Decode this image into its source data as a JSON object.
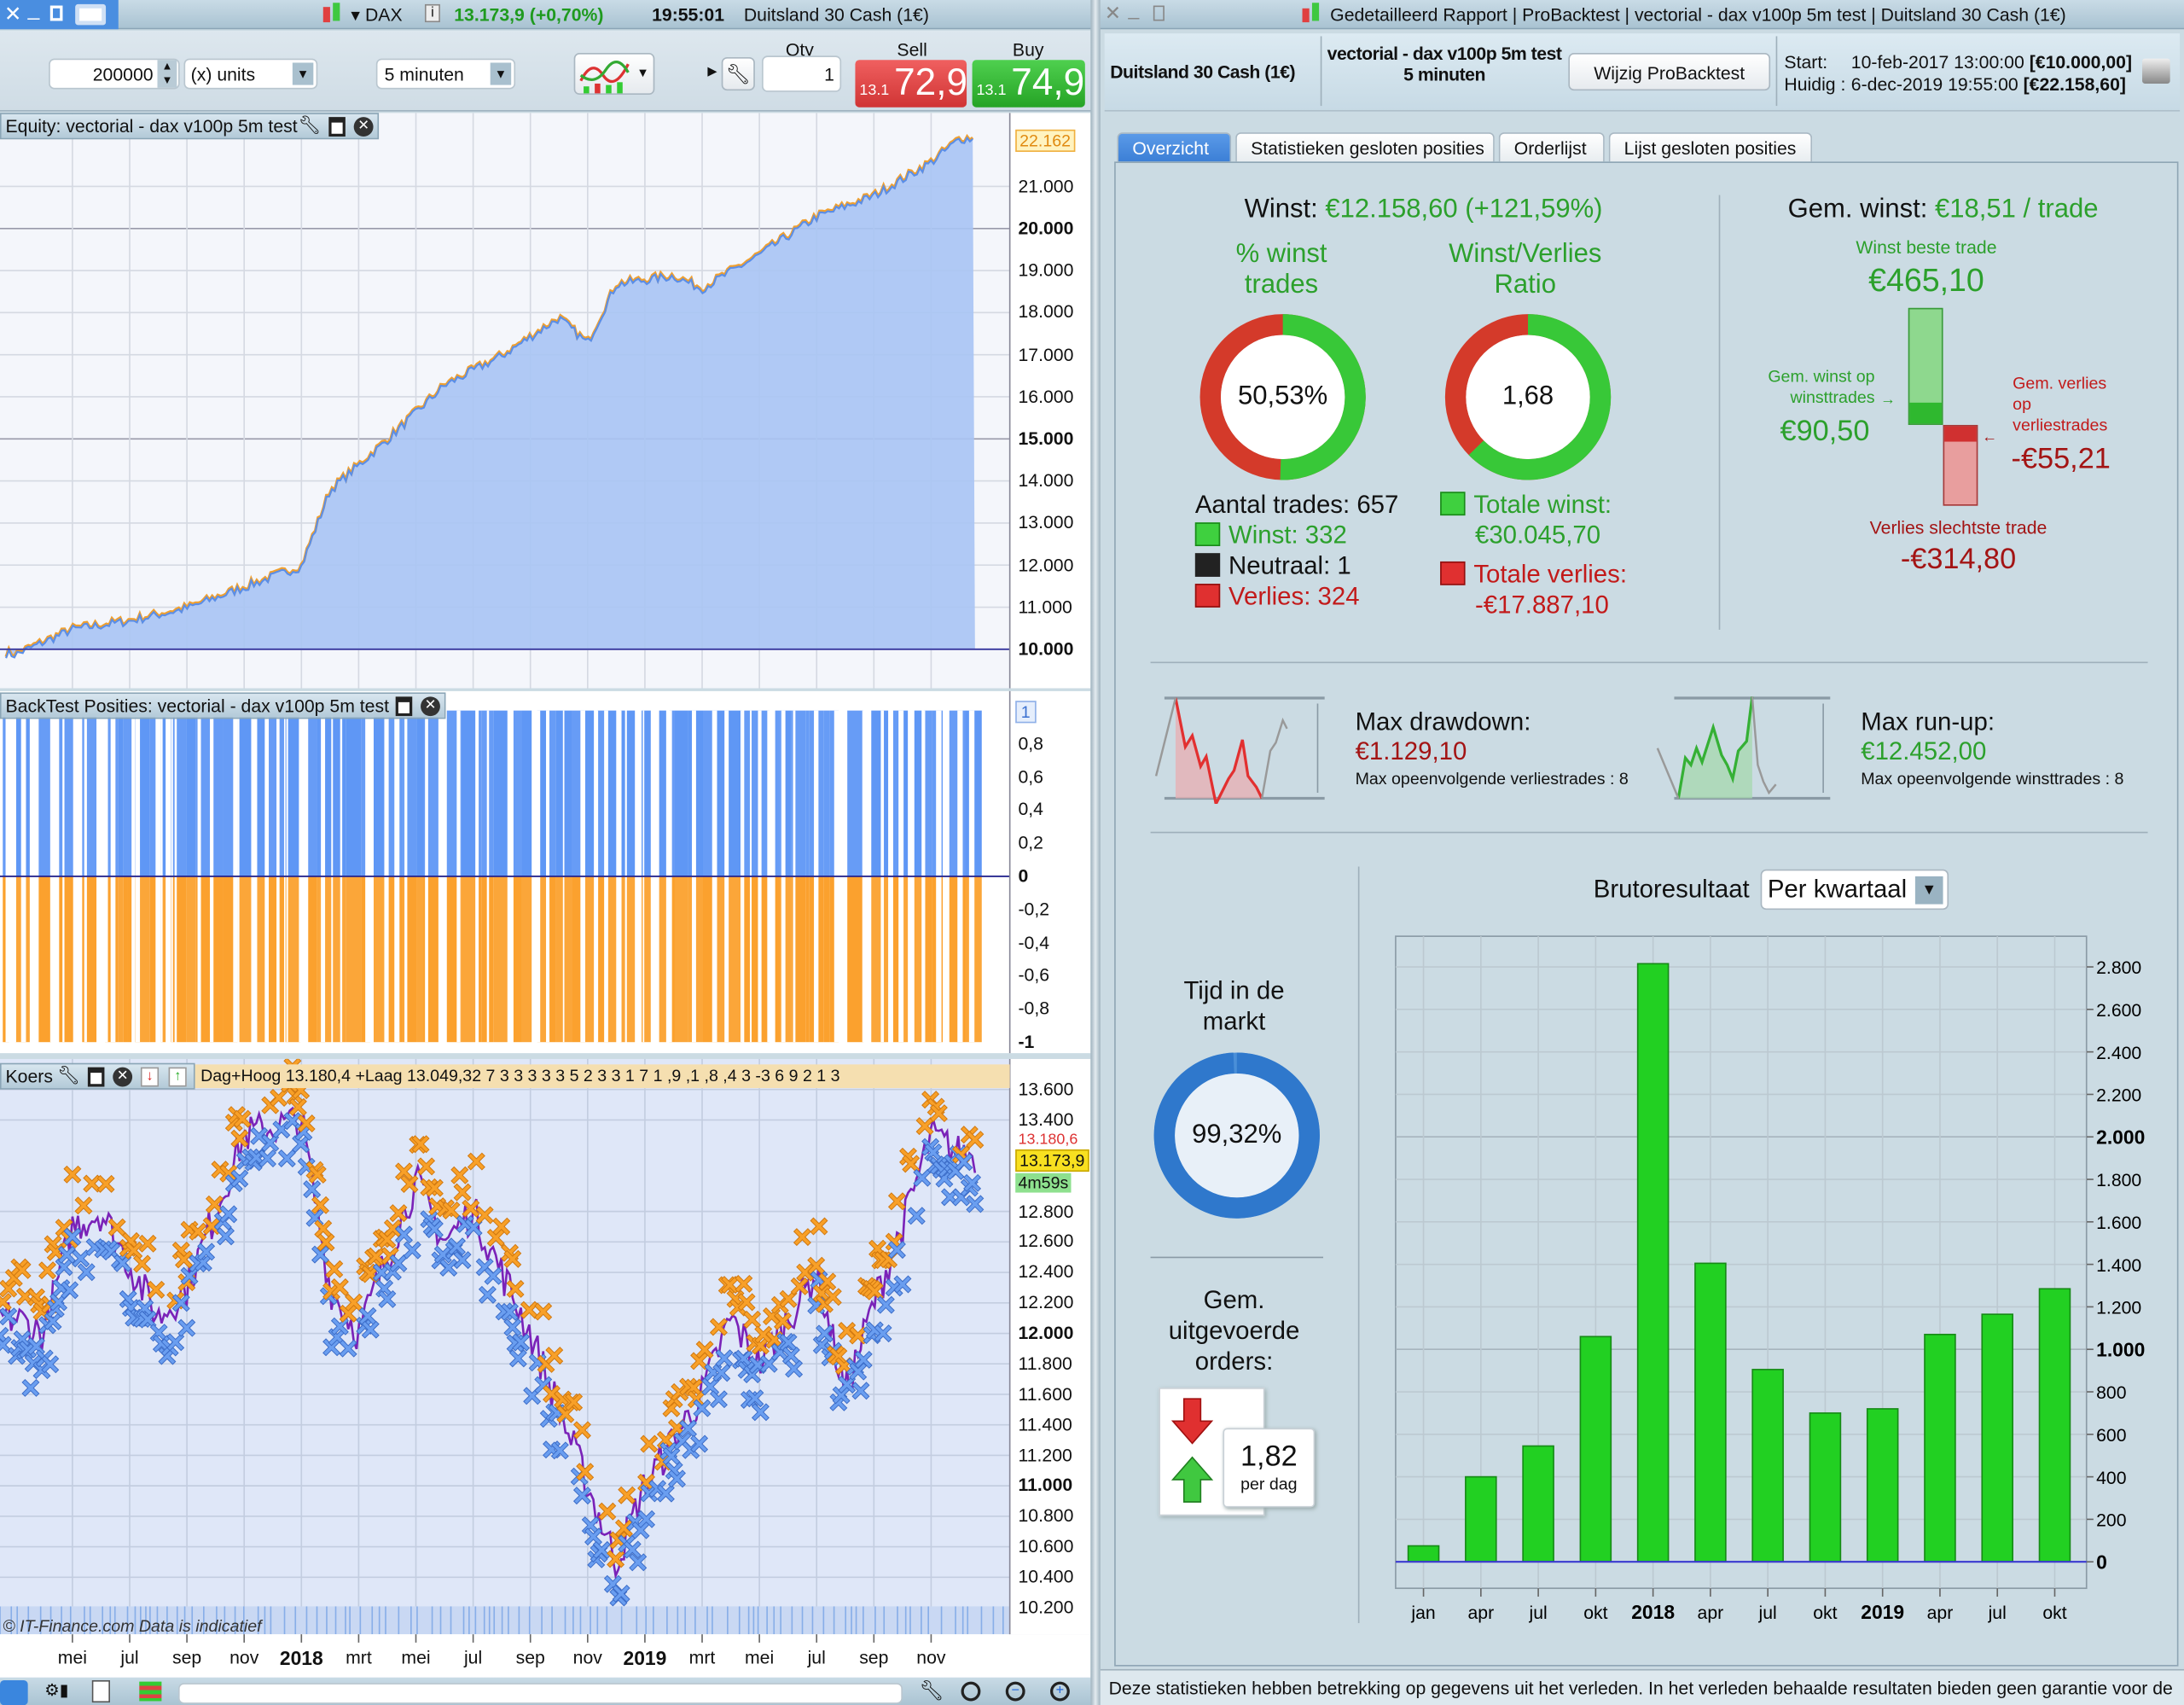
{
  "left_window": {
    "title_bar": {
      "instrument_menu": "DAX",
      "price_change": "13.173,9 (+0,70%)",
      "time": "19:55:01",
      "instrument_name": "Duitsland 30 Cash (1€)"
    },
    "toolbar": {
      "quantity_units": "200000",
      "units_select": "(x) units",
      "interval_select": "5 minuten",
      "qty_label": "Qty",
      "qty_value": "1",
      "sell_label": "Sell",
      "sell_prefix": "13.1",
      "sell_price": "72,9",
      "buy_label": "Buy",
      "buy_prefix": "13.1",
      "buy_price": "74,9"
    },
    "equity_panel": {
      "title": "Equity: vectorial - dax v100p 5m test",
      "last_value": "22.162",
      "y_ticks": [
        {
          "label": "21.000",
          "v": 21000
        },
        {
          "label": "20.000",
          "v": 20000,
          "bold": true
        },
        {
          "label": "19.000",
          "v": 19000
        },
        {
          "label": "18.000",
          "v": 18000
        },
        {
          "label": "17.000",
          "v": 17000
        },
        {
          "label": "16.000",
          "v": 16000
        },
        {
          "label": "15.000",
          "v": 15000,
          "bold": true
        },
        {
          "label": "14.000",
          "v": 14000
        },
        {
          "label": "13.000",
          "v": 13000
        },
        {
          "label": "12.000",
          "v": 12000
        },
        {
          "label": "11.000",
          "v": 11000
        },
        {
          "label": "10.000",
          "v": 10000,
          "bold": true
        }
      ],
      "equity_approx": [
        [
          "2017-02",
          10000
        ],
        [
          "2017-03",
          9900
        ],
        [
          "2017-05",
          10500
        ],
        [
          "2017-07",
          10700
        ],
        [
          "2017-09",
          11000
        ],
        [
          "2017-11",
          11500
        ],
        [
          "2018-01",
          12000
        ],
        [
          "2018-02",
          13800
        ],
        [
          "2018-04",
          15000
        ],
        [
          "2018-06",
          16300
        ],
        [
          "2018-08",
          17000
        ],
        [
          "2018-10",
          17900
        ],
        [
          "2018-11",
          17300
        ],
        [
          "2018-12",
          18700
        ],
        [
          "2019-02",
          18900
        ],
        [
          "2019-03",
          18600
        ],
        [
          "2019-05",
          19400
        ],
        [
          "2019-07",
          20300
        ],
        [
          "2019-09",
          20800
        ],
        [
          "2019-11",
          21600
        ],
        [
          "2019-12",
          22162
        ]
      ]
    },
    "positions_panel": {
      "title": "BackTest Posities: vectorial - dax v100p 5m test",
      "top_value": "1",
      "y_ticks": [
        {
          "label": "0,8",
          "v": 0.8
        },
        {
          "label": "0,6",
          "v": 0.6
        },
        {
          "label": "0,4",
          "v": 0.4
        },
        {
          "label": "0,2",
          "v": 0.2
        },
        {
          "label": "0",
          "v": 0,
          "bold": true
        },
        {
          "label": "-0,2",
          "v": -0.2
        },
        {
          "label": "-0,4",
          "v": -0.4
        },
        {
          "label": "-0,6",
          "v": -0.6
        },
        {
          "label": "-0,8",
          "v": -0.8
        },
        {
          "label": "-1",
          "v": -1,
          "bold": true
        }
      ]
    },
    "price_panel": {
      "title": "Koers",
      "info_band": "Dag+Hoog 13.180,4 +Laag 13.049,32   7 3 3 3 3 3  5 2 3  3 1  7 1 ,9   ,1   ,8 ,4 3 -3 6 9  2 1 3",
      "current_price": "13.173,9",
      "countdown": "4m59s",
      "high_marker": "13.180,6",
      "y_ticks": [
        {
          "label": "13.600",
          "v": 13600
        },
        {
          "label": "13.400",
          "v": 13400
        },
        {
          "label": "12.800",
          "v": 12800
        },
        {
          "label": "12.600",
          "v": 12600
        },
        {
          "label": "12.400",
          "v": 12400
        },
        {
          "label": "12.200",
          "v": 12200
        },
        {
          "label": "12.000",
          "v": 12000,
          "bold": true
        },
        {
          "label": "11.800",
          "v": 11800
        },
        {
          "label": "11.600",
          "v": 11600
        },
        {
          "label": "11.400",
          "v": 11400
        },
        {
          "label": "11.200",
          "v": 11200
        },
        {
          "label": "11.000",
          "v": 11000,
          "bold": true
        },
        {
          "label": "10.800",
          "v": 10800
        },
        {
          "label": "10.600",
          "v": 10600
        },
        {
          "label": "10.400",
          "v": 10400
        },
        {
          "label": "10.200",
          "v": 10200
        }
      ],
      "price_approx": [
        [
          "2017-03",
          12100
        ],
        [
          "2017-04",
          12000
        ],
        [
          "2017-05",
          12700
        ],
        [
          "2017-06",
          12800
        ],
        [
          "2017-08",
          12100
        ],
        [
          "2017-09",
          12300
        ],
        [
          "2017-11",
          13300
        ],
        [
          "2018-01",
          13400
        ],
        [
          "2018-02",
          12300
        ],
        [
          "2018-03",
          12000
        ],
        [
          "2018-05",
          13000
        ],
        [
          "2018-06",
          12600
        ],
        [
          "2018-07",
          12800
        ],
        [
          "2018-09",
          12000
        ],
        [
          "2018-10",
          11500
        ],
        [
          "2018-12",
          10500
        ],
        [
          "2019-01",
          11000
        ],
        [
          "2019-03",
          11600
        ],
        [
          "2019-04",
          12100
        ],
        [
          "2019-05",
          11800
        ],
        [
          "2019-07",
          12400
        ],
        [
          "2019-08",
          11600
        ],
        [
          "2019-09",
          12200
        ],
        [
          "2019-10",
          12700
        ],
        [
          "2019-11",
          13300
        ],
        [
          "2019-12",
          13174
        ]
      ],
      "watermark": "© IT-Finance.com  Data is indicatief"
    },
    "x_axis": [
      {
        "label": "mei",
        "d": "2017-05"
      },
      {
        "label": "jul",
        "d": "2017-07"
      },
      {
        "label": "sep",
        "d": "2017-09"
      },
      {
        "label": "nov",
        "d": "2017-11"
      },
      {
        "label": "2018",
        "d": "2018-01",
        "bold": true
      },
      {
        "label": "mrt",
        "d": "2018-03"
      },
      {
        "label": "mei",
        "d": "2018-05"
      },
      {
        "label": "jul",
        "d": "2018-07"
      },
      {
        "label": "sep",
        "d": "2018-09"
      },
      {
        "label": "nov",
        "d": "2018-11"
      },
      {
        "label": "2019",
        "d": "2019-01",
        "bold": true
      },
      {
        "label": "mrt",
        "d": "2019-03"
      },
      {
        "label": "mei",
        "d": "2019-05"
      },
      {
        "label": "jul",
        "d": "2019-07"
      },
      {
        "label": "sep",
        "d": "2019-09"
      },
      {
        "label": "nov",
        "d": "2019-11"
      }
    ]
  },
  "right_window": {
    "title_bar": {
      "parts": [
        "Gedetailleerd Rapport",
        "ProBacktest",
        "vectorial - dax v100p 5m test",
        "Duitsland 30 Cash (1€)"
      ]
    },
    "header": {
      "instrument": "Duitsland 30 Cash (1€)",
      "strategy": "vectorial - dax v100p 5m test",
      "interval": "5 minuten",
      "edit_button": "Wijzig ProBacktest",
      "start_label": "Start:",
      "start_date": "10-feb-2017 13:00:00",
      "start_capital": "[€10.000,00]",
      "current_label": "Huidig :",
      "current_date": "6-dec-2019 19:55:00",
      "current_capital": "[€22.158,60]"
    },
    "tabs": [
      {
        "label": "Overzicht",
        "active": true
      },
      {
        "label": "Statistieken gesloten posities"
      },
      {
        "label": "Orderlijst"
      },
      {
        "label": "Lijst gesloten posities"
      }
    ],
    "overview": {
      "profit_label": "Winst:",
      "profit_value": "€12.158,60 (+121,59%)",
      "win_pct_title_1": "% winst",
      "win_pct_title_2": "trades",
      "win_pct": "50,53%",
      "win_pct_value": 50.53,
      "ratio_title_1": "Winst/Verlies",
      "ratio_title_2": "Ratio",
      "ratio": "1,68",
      "ratio_value": 1.68,
      "trades_count": "Aantal trades: 657",
      "wins": "Winst: 332",
      "neutral": "Neutraal: 1",
      "losses": "Verlies: 324",
      "total_win_label": "Totale winst:",
      "total_win": "€30.045,70",
      "total_loss_label": "Totale verlies:",
      "total_loss": "-€17.887,10",
      "avg_label": "Gem. winst:",
      "avg_value": "€18,51 / trade",
      "best_trade_label": "Winst beste trade",
      "best_trade": "€465,10",
      "avg_win_label_1": "Gem. winst op",
      "avg_win_label_2": "winsttrades",
      "avg_win": "€90,50",
      "avg_loss_label_1": "Gem. verlies",
      "avg_loss_label_2": "op",
      "avg_loss_label_3": "verliestrades",
      "avg_loss": "-€55,21",
      "worst_trade_label": "Verlies slechtste trade",
      "worst_trade": "-€314,80",
      "drawdown_label": "Max drawdown:",
      "drawdown": "€1.129,10",
      "drawdown_sub": "Max opeenvolgende verliestrades : 8",
      "runup_label": "Max run-up:",
      "runup": "€12.452,00",
      "runup_sub": "Max opeenvolgende winsttrades : 8",
      "time_in_market_1": "Tijd in de",
      "time_in_market_2": "markt",
      "time_in_market": "99,32%",
      "time_in_market_value": 99.32,
      "orders_label_1": "Gem.",
      "orders_label_2": "uitgevoerde",
      "orders_label_3": "orders:",
      "orders_per_day": "1,82",
      "orders_unit": "per dag",
      "gross_label": "Brutoresultaat",
      "gross_select": "Per kwartaal"
    },
    "footer": "Deze statistieken hebben betrekking op gegevens uit het verleden. In het verleden behaalde resultaten bieden geen garantie voor de",
    "colors": {
      "green": "#2ca02c",
      "red": "#a31414",
      "tab_active": "#3c7fd6"
    }
  },
  "chart_data": {
    "type": "bar",
    "title": "Brutoresultaat",
    "categories": [
      "jan",
      "apr",
      "jul",
      "okt",
      "2018",
      "apr",
      "jul",
      "okt",
      "2019",
      "apr",
      "jul",
      "okt"
    ],
    "bold_categories": [
      "2018",
      "2019"
    ],
    "values": [
      75,
      400,
      545,
      1060,
      2815,
      1405,
      905,
      700,
      720,
      1070,
      1165,
      1285
    ],
    "ylim": [
      -140,
      2960
    ],
    "y_ticks": [
      {
        "label": "2.800",
        "v": 2800
      },
      {
        "label": "2.600",
        "v": 2600
      },
      {
        "label": "2.400",
        "v": 2400
      },
      {
        "label": "2.200",
        "v": 2200
      },
      {
        "label": "2.000",
        "v": 2000,
        "bold": true
      },
      {
        "label": "1.800",
        "v": 1800
      },
      {
        "label": "1.600",
        "v": 1600
      },
      {
        "label": "1.400",
        "v": 1400
      },
      {
        "label": "1.200",
        "v": 1200
      },
      {
        "label": "1.000",
        "v": 1000,
        "bold": true
      },
      {
        "label": "800",
        "v": 800
      },
      {
        "label": "600",
        "v": 600
      },
      {
        "label": "400",
        "v": 400
      },
      {
        "label": "200",
        "v": 200
      },
      {
        "label": "0",
        "v": 0,
        "bold": true
      }
    ],
    "grid": true,
    "bar_color": "#22d022"
  }
}
